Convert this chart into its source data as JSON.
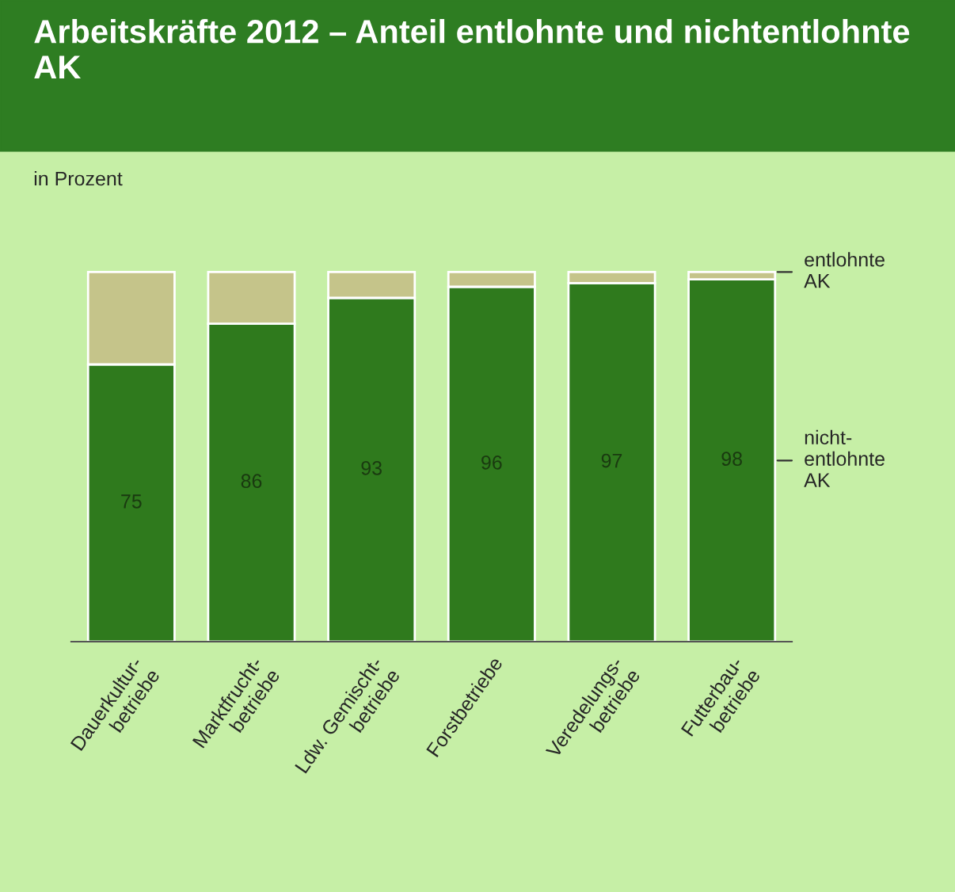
{
  "chart_data": {
    "type": "bar",
    "title": "Arbeitskräfte 2012 – Anteil entlohnte und nichtentlohnte AK",
    "subtitle": "in Prozent",
    "categories": [
      "Dauerkultur-\nbetriebe",
      "Marktfrucht-\nbetriebe",
      "Ldw. Gemischt-\nbetriebe",
      "Forstbetriebe",
      "Veredelungs-\nbetriebe",
      "Futterbau-\nbetriebe"
    ],
    "stacked": true,
    "tick_labels": "x",
    "grid": false,
    "legend": false,
    "series": [
      {
        "name": "nicht-\nentlohnte\nAK",
        "color": "#2f7a1d",
        "values": [
          75,
          86,
          93,
          96,
          97,
          98
        ],
        "value_labels": [
          "75",
          "86",
          "93",
          "96",
          "97",
          "98"
        ]
      },
      {
        "name": "entlohnte\nAK",
        "color": "#c5c48a",
        "values": [
          25,
          14,
          7,
          4,
          3,
          2
        ]
      }
    ]
  }
}
